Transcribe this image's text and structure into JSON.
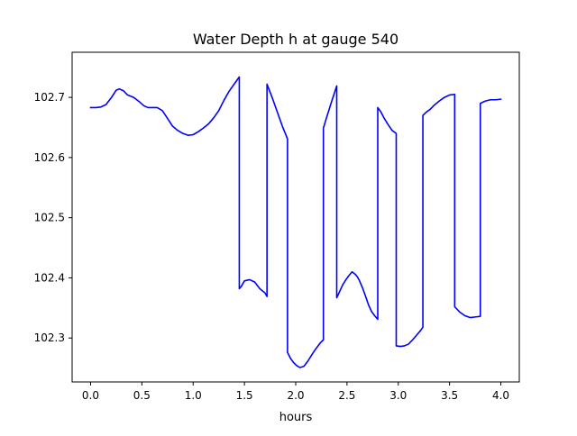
{
  "chart_data": {
    "type": "line",
    "title": "Water Depth h at gauge 540",
    "xlabel": "hours",
    "ylabel": "",
    "xlim": [
      -0.18,
      4.18
    ],
    "ylim": [
      102.227,
      102.775
    ],
    "x_ticks": [
      0.0,
      0.5,
      1.0,
      1.5,
      2.0,
      2.5,
      3.0,
      3.5,
      4.0
    ],
    "x_tick_labels": [
      "0.0",
      "0.5",
      "1.0",
      "1.5",
      "2.0",
      "2.5",
      "3.0",
      "3.5",
      "4.0"
    ],
    "y_ticks": [
      102.3,
      102.4,
      102.5,
      102.6,
      102.7
    ],
    "y_tick_labels": [
      "102.3",
      "102.4",
      "102.5",
      "102.6",
      "102.7"
    ],
    "grid": false,
    "legend": false,
    "colors": {
      "line": "#0000ff",
      "axes": "#000000",
      "background": "#ffffff"
    },
    "series": [
      {
        "x": [
          0.0,
          0.05,
          0.1,
          0.15,
          0.2,
          0.25,
          0.28,
          0.32,
          0.36,
          0.42,
          0.48,
          0.52,
          0.56,
          0.6,
          0.65,
          0.7,
          0.75,
          0.8,
          0.85,
          0.9,
          0.95,
          1.0,
          1.05,
          1.1,
          1.15,
          1.2,
          1.25,
          1.3,
          1.35,
          1.4,
          1.45,
          1.45,
          1.47,
          1.5,
          1.55,
          1.6,
          1.65,
          1.7,
          1.72,
          1.72,
          1.77,
          1.82,
          1.87,
          1.92,
          1.92,
          1.95,
          1.98,
          2.01,
          2.04,
          2.08,
          2.12,
          2.16,
          2.2,
          2.24,
          2.27,
          2.27,
          2.3,
          2.35,
          2.4,
          2.4,
          2.43,
          2.46,
          2.49,
          2.52,
          2.55,
          2.58,
          2.6,
          2.62,
          2.65,
          2.68,
          2.71,
          2.74,
          2.77,
          2.8,
          2.8,
          2.83,
          2.86,
          2.9,
          2.94,
          2.98,
          2.98,
          3.02,
          3.06,
          3.1,
          3.14,
          3.18,
          3.22,
          3.24,
          3.24,
          3.27,
          3.31,
          3.35,
          3.4,
          3.45,
          3.5,
          3.55,
          3.55,
          3.6,
          3.65,
          3.7,
          3.75,
          3.8,
          3.8,
          3.85,
          3.9,
          3.95,
          4.0
        ],
        "y": [
          102.683,
          102.683,
          102.684,
          102.688,
          102.699,
          102.712,
          102.714,
          102.711,
          102.704,
          102.7,
          102.692,
          102.686,
          102.683,
          102.683,
          102.683,
          102.678,
          102.665,
          102.652,
          102.645,
          102.64,
          102.637,
          102.638,
          102.643,
          102.649,
          102.656,
          102.666,
          102.678,
          102.695,
          102.71,
          102.722,
          102.734,
          102.382,
          102.386,
          102.395,
          102.397,
          102.393,
          102.382,
          102.375,
          102.369,
          102.722,
          102.7,
          102.676,
          102.652,
          102.631,
          102.276,
          102.266,
          102.259,
          102.254,
          102.251,
          102.253,
          102.262,
          102.273,
          102.283,
          102.292,
          102.297,
          102.649,
          102.666,
          102.693,
          102.719,
          102.367,
          102.378,
          102.389,
          102.397,
          102.404,
          102.41,
          102.406,
          102.402,
          102.396,
          102.384,
          102.37,
          102.355,
          102.344,
          102.337,
          102.331,
          102.683,
          102.676,
          102.666,
          102.655,
          102.645,
          102.64,
          102.287,
          102.286,
          102.287,
          102.29,
          102.297,
          102.305,
          102.313,
          102.318,
          102.67,
          102.675,
          102.68,
          102.687,
          102.694,
          102.7,
          102.704,
          102.705,
          102.352,
          102.343,
          102.337,
          102.334,
          102.335,
          102.336,
          102.69,
          102.694,
          102.696,
          102.696,
          102.697
        ]
      }
    ]
  }
}
